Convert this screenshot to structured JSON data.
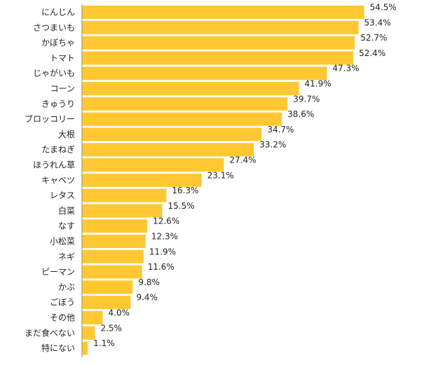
{
  "chart_data": {
    "type": "bar",
    "orientation": "horizontal",
    "categories": [
      "にんじん",
      "さつまいも",
      "かぼちゃ",
      "トマト",
      "じゃがいも",
      "コーン",
      "きゅうり",
      "ブロッコリー",
      "大根",
      "たまねぎ",
      "ほうれん草",
      "キャベツ",
      "レタス",
      "白菜",
      "なす",
      "小松菜",
      "ネギ",
      "ピーマン",
      "かぶ",
      "ごぼう",
      "その他",
      "まだ食べない",
      "特にない"
    ],
    "values": [
      54.5,
      53.4,
      52.7,
      52.4,
      47.3,
      41.9,
      39.7,
      38.6,
      34.7,
      33.2,
      27.4,
      23.1,
      16.3,
      15.5,
      12.6,
      12.3,
      11.9,
      11.6,
      9.8,
      9.4,
      4.0,
      2.5,
      1.1
    ],
    "value_labels": [
      "54.5%",
      "53.4%",
      "52.7%",
      "52.4%",
      "47.3%",
      "41.9%",
      "39.7%",
      "38.6%",
      "34.7%",
      "33.2%",
      "27.4%",
      "23.1%",
      "16.3%",
      "15.5%",
      "12.6%",
      "12.3%",
      "11.9%",
      "11.6%",
      "9.8%",
      "9.4%",
      "4.0%",
      "2.5%",
      "1.1%"
    ],
    "unit": "%",
    "xlim": [
      0,
      55.5
    ],
    "grid": false,
    "legend": "none",
    "title": "",
    "xlabel": "",
    "ylabel": "",
    "bar_color": "#FFC832",
    "axis_color": "#888888",
    "text_color": "#222222"
  }
}
